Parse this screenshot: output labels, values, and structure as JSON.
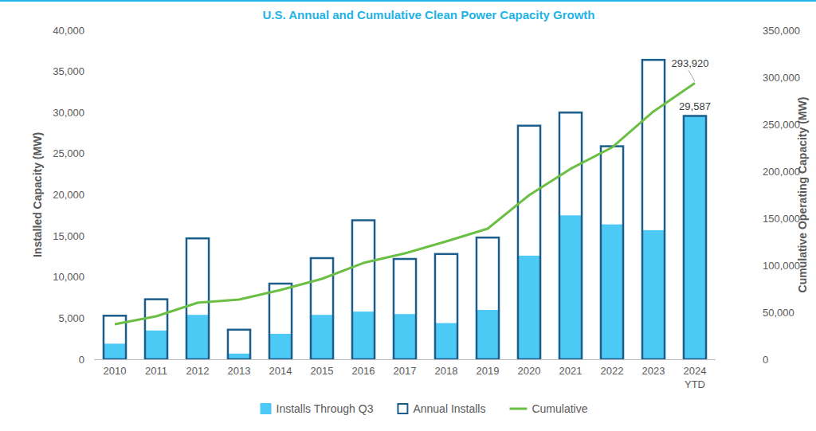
{
  "chart_data": {
    "type": "bar",
    "title": "U.S. Annual and Cumulative Clean Power Capacity Growth",
    "y_label": "Installed Capacity (MW)",
    "y2_label": "Cumulative Operating Capacity (MW)",
    "categories": [
      "2010",
      "2011",
      "2012",
      "2013",
      "2014",
      "2015",
      "2016",
      "2017",
      "2018",
      "2019",
      "2020",
      "2021",
      "2022",
      "2023",
      "2024 YTD"
    ],
    "series": [
      {
        "name": "Installs Through Q3",
        "type": "bar",
        "color": "#4dc9f6",
        "values": [
          1900,
          3500,
          5400,
          700,
          3100,
          5400,
          5800,
          5500,
          4400,
          6000,
          12600,
          17500,
          16400,
          15700,
          29587
        ],
        "value_labels": [
          null,
          null,
          null,
          null,
          null,
          null,
          null,
          null,
          null,
          null,
          null,
          null,
          null,
          null,
          "29,587"
        ]
      },
      {
        "name": "Annual Installs",
        "type": "bar",
        "color": "#1b5e8c",
        "values": [
          5300,
          7300,
          14700,
          3600,
          9200,
          12300,
          16900,
          12200,
          12800,
          14800,
          28400,
          30000,
          25900,
          36400,
          29587
        ]
      },
      {
        "name": "Cumulative",
        "type": "line",
        "axis": "y2",
        "color": "#6cbf45",
        "line_style": "solid",
        "values": [
          37300,
          45800,
          60200,
          63600,
          73700,
          85600,
          102500,
          112700,
          125400,
          139000,
          174600,
          202600,
          225400,
          263600,
          293920
        ],
        "value_labels": [
          null,
          null,
          null,
          null,
          null,
          null,
          null,
          null,
          null,
          null,
          null,
          null,
          null,
          null,
          "293,920"
        ]
      }
    ],
    "ylim": [
      0,
      40000
    ],
    "yticks": [
      0,
      {
        "value": 5000,
        "label": "5,000"
      },
      {
        "value": 10000,
        "label": "10,000"
      },
      {
        "value": 15000,
        "label": "15,000"
      },
      {
        "value": 20000,
        "label": "20,000"
      },
      {
        "value": 25000,
        "label": "25,000"
      },
      {
        "value": 30000,
        "label": "30,000"
      },
      {
        "value": 35000,
        "label": "35,000"
      },
      {
        "value": 40000,
        "label": "40,000"
      }
    ],
    "y2lim": [
      0,
      350000
    ],
    "y2ticks": [
      0,
      {
        "value": 50000,
        "label": "50,000"
      },
      {
        "value": 100000,
        "label": "100,000"
      },
      {
        "value": 150000,
        "label": "150,000"
      },
      {
        "value": 200000,
        "label": "200,000"
      },
      {
        "value": 250000,
        "label": "250,000"
      },
      {
        "value": 300000,
        "label": "300,000"
      },
      {
        "value": 350000,
        "label": "350,000"
      }
    ],
    "stacked": false,
    "grid": false,
    "legend": "bottom"
  }
}
